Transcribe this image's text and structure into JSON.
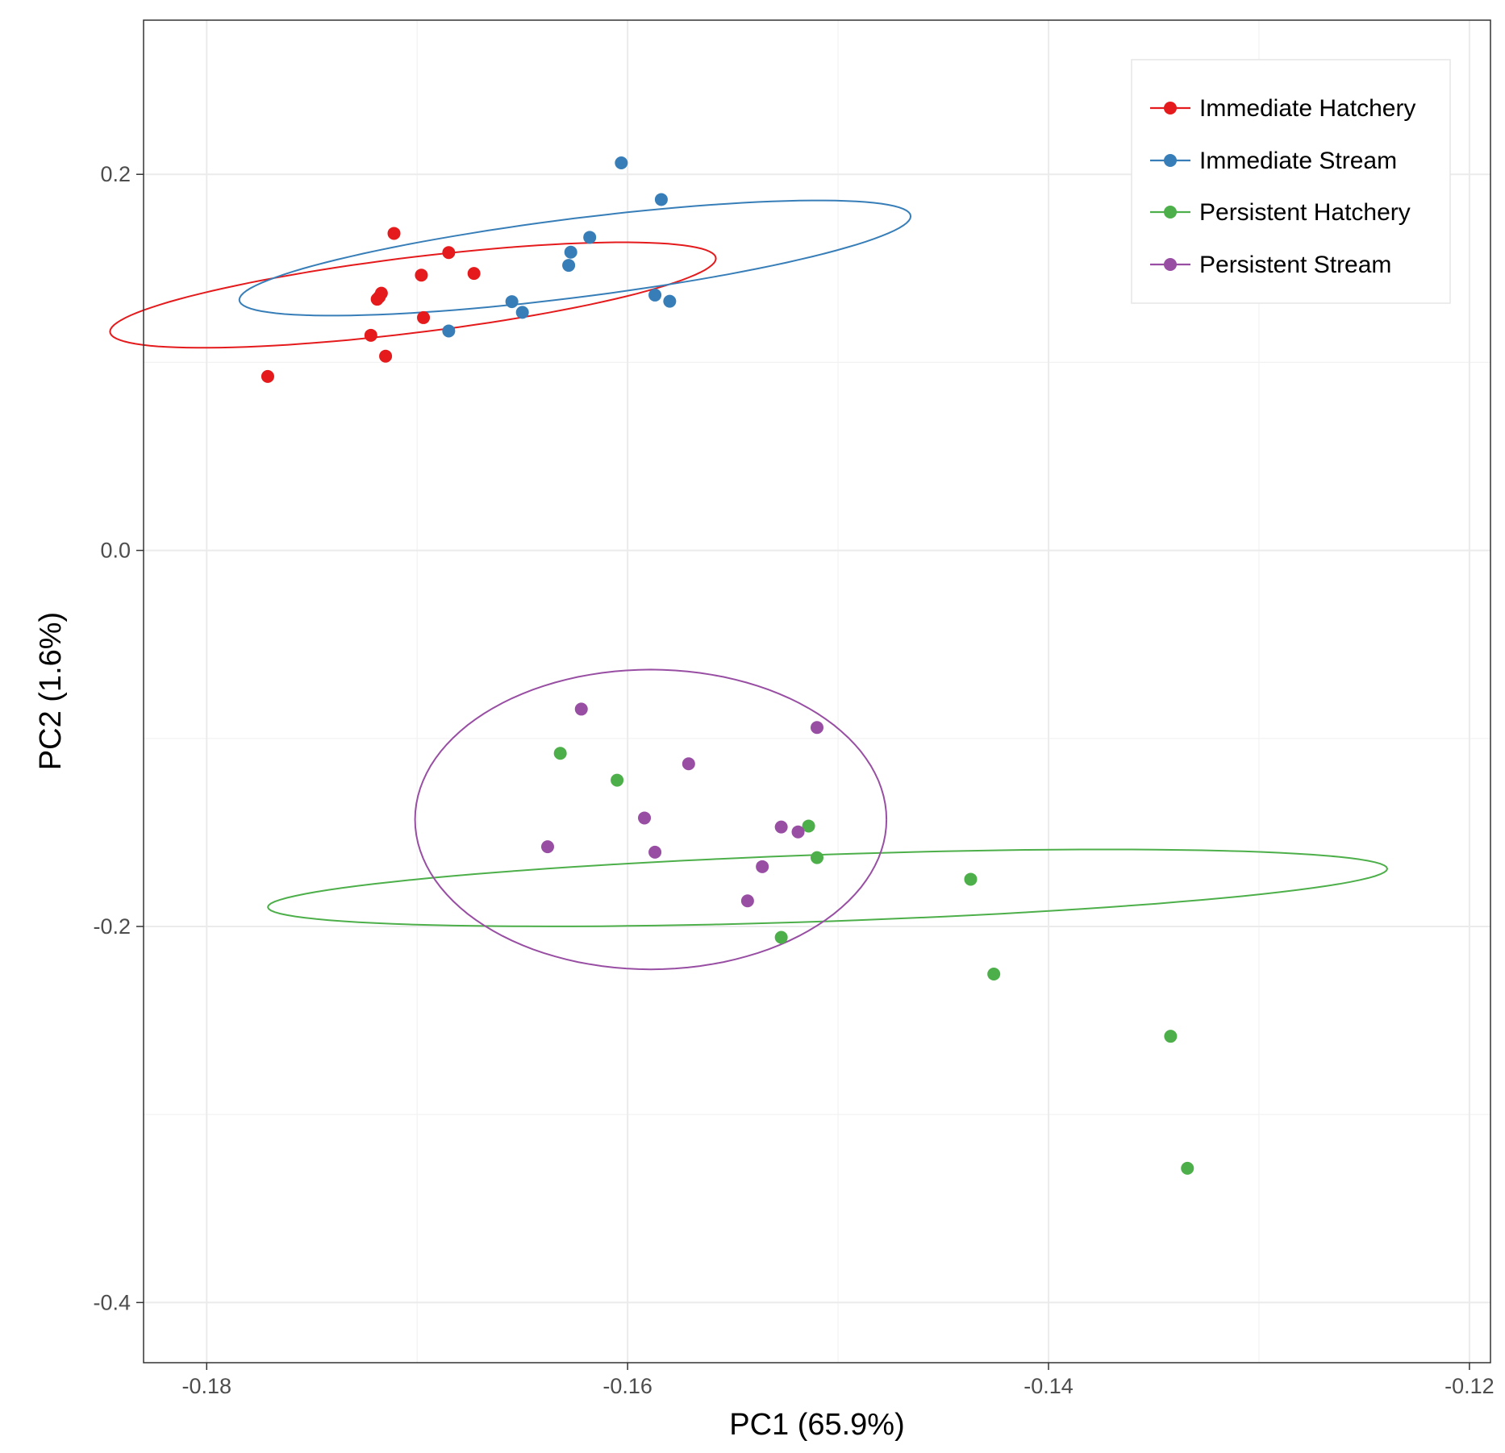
{
  "chart_data": {
    "type": "scatter",
    "title": "",
    "xlabel": "PC1 (65.9%)",
    "ylabel": "PC2 (1.6%)",
    "xlim": [
      -0.183,
      -0.119
    ],
    "ylim": [
      -0.432,
      0.282
    ],
    "x_ticks": [
      -0.18,
      -0.16,
      -0.14,
      -0.12
    ],
    "x_tick_labels": [
      "-0.18",
      "-0.16",
      "-0.14",
      "-0.12"
    ],
    "y_ticks": [
      0.2,
      0.0,
      -0.2,
      -0.4
    ],
    "y_tick_labels": [
      "0.2",
      "0.0",
      "-0.2",
      "-0.4"
    ],
    "grid": true,
    "legend_position": "top-right",
    "series": [
      {
        "name": "Immediate Hatchery",
        "color": "#e41a1c",
        "points": [
          [
            -0.1771,
            0.0925
          ],
          [
            -0.1711,
            0.1686
          ],
          [
            -0.1698,
            0.1464
          ],
          [
            -0.1685,
            0.1584
          ],
          [
            -0.1673,
            0.1473
          ],
          [
            -0.1718,
            0.1348
          ],
          [
            -0.1717,
            0.1368
          ],
          [
            -0.1719,
            0.1336
          ],
          [
            -0.1697,
            0.1238
          ],
          [
            -0.1722,
            0.1144
          ],
          [
            -0.1715,
            0.1033
          ]
        ],
        "ellipse": {
          "cx": -0.1702,
          "cy": 0.1358,
          "rx": 0.0097,
          "ry": 0.03,
          "angle_deg": -22
        }
      },
      {
        "name": "Immediate Stream",
        "color": "#377eb8",
        "points": [
          [
            -0.1603,
            0.2061
          ],
          [
            -0.1584,
            0.1866
          ],
          [
            -0.1618,
            0.1665
          ],
          [
            -0.1627,
            0.1586
          ],
          [
            -0.1628,
            0.1516
          ],
          [
            -0.1655,
            0.1323
          ],
          [
            -0.165,
            0.1266
          ],
          [
            -0.1587,
            0.1358
          ],
          [
            -0.158,
            0.1325
          ],
          [
            -0.1685,
            0.1167
          ]
        ],
        "ellipse": {
          "cx": -0.1625,
          "cy": 0.1555,
          "rx": 0.0102,
          "ry": 0.033,
          "angle_deg": -23
        }
      },
      {
        "name": "Persistent Hatchery",
        "color": "#4daf4a",
        "points": [
          [
            -0.1632,
            -0.1079
          ],
          [
            -0.1605,
            -0.1222
          ],
          [
            -0.1514,
            -0.1466
          ],
          [
            -0.151,
            -0.1634
          ],
          [
            -0.1437,
            -0.1749
          ],
          [
            -0.1527,
            -0.2058
          ],
          [
            -0.1426,
            -0.2253
          ],
          [
            -0.1342,
            -0.2584
          ],
          [
            -0.1334,
            -0.3286
          ]
        ],
        "ellipse": {
          "cx": -0.1505,
          "cy": -0.1795,
          "rx": 0.0295,
          "ry": 0.016,
          "angle_deg": 31
        }
      },
      {
        "name": "Persistent Stream",
        "color": "#984ea3",
        "points": [
          [
            -0.1622,
            -0.0844
          ],
          [
            -0.151,
            -0.0942
          ],
          [
            -0.1571,
            -0.1135
          ],
          [
            -0.1592,
            -0.1423
          ],
          [
            -0.1527,
            -0.1471
          ],
          [
            -0.1519,
            -0.1497
          ],
          [
            -0.1638,
            -0.1576
          ],
          [
            -0.1587,
            -0.1605
          ],
          [
            -0.1536,
            -0.1682
          ],
          [
            -0.1543,
            -0.1864
          ]
        ],
        "ellipse": {
          "cx": -0.1589,
          "cy": -0.1431,
          "rx": 0.0112,
          "ry": 0.0797,
          "angle_deg": 0
        }
      }
    ]
  }
}
